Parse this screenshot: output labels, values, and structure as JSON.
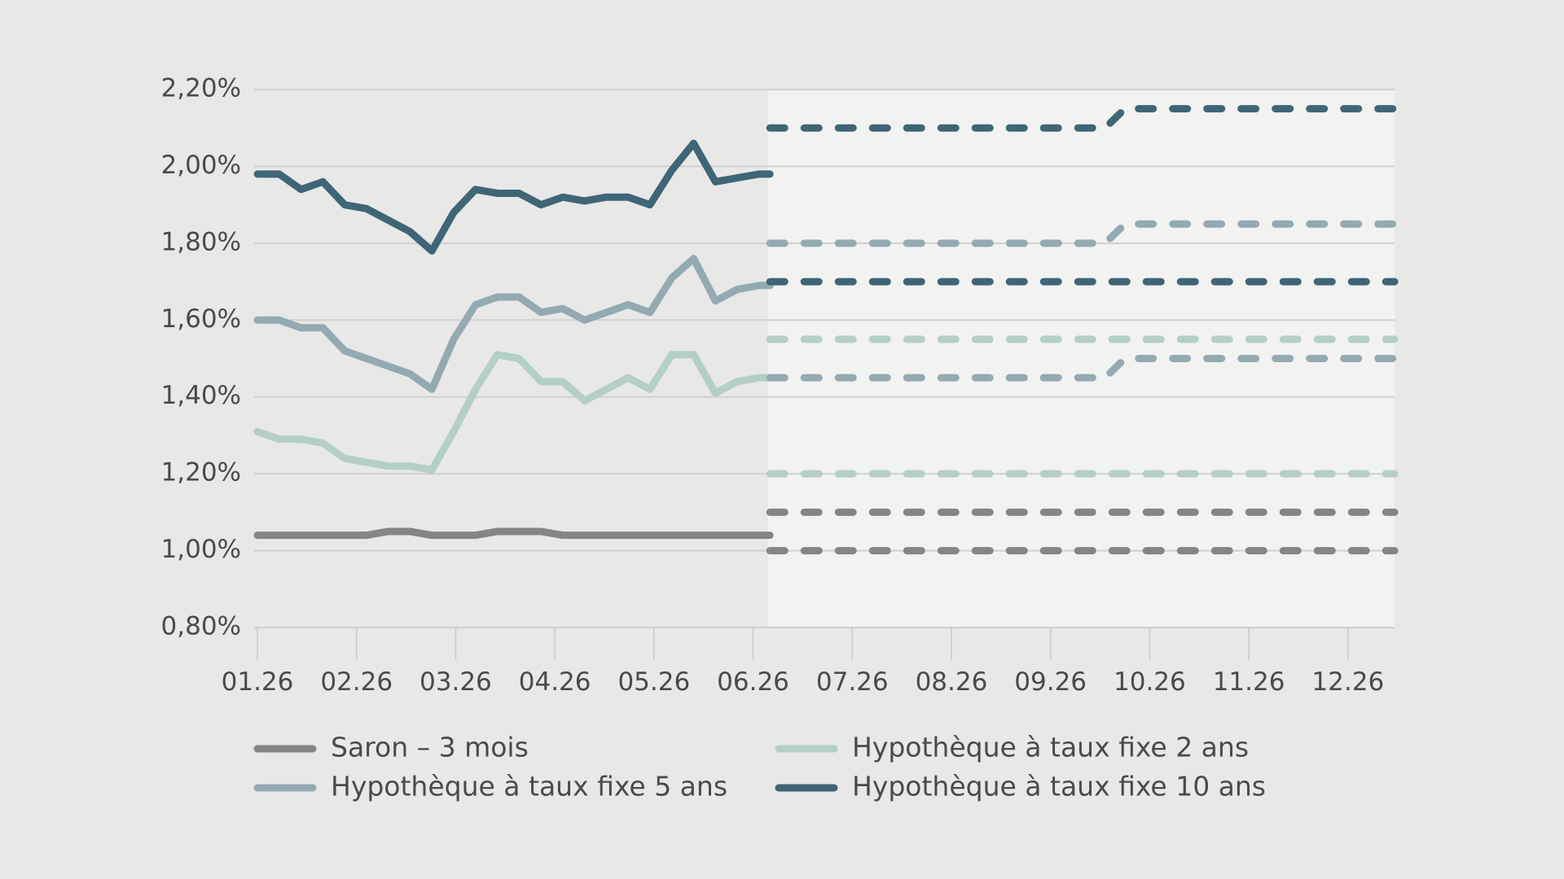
{
  "chart_data": {
    "type": "line",
    "colors": {
      "background": "#e8e8e7",
      "forecast_background": "#f2f2f1",
      "grid": "#d0d0cf",
      "axis_text": "#4a4a4a"
    },
    "ylim": [
      0.8,
      2.2
    ],
    "y_ticks": [
      2.2,
      2.0,
      1.8,
      1.6,
      1.4,
      1.2,
      1.0,
      0.8
    ],
    "y_tick_labels": [
      "2,20%",
      "2,00%",
      "1,80%",
      "1,60%",
      "1,40%",
      "1,20%",
      "1,00%",
      "0,80%"
    ],
    "x_ticks": [
      1,
      2,
      3,
      4,
      5,
      6,
      7,
      8,
      9,
      10,
      11,
      12
    ],
    "x_tick_labels": [
      "01.26",
      "02.26",
      "03.26",
      "04.26",
      "05.26",
      "06.26",
      "07.26",
      "08.26",
      "09.26",
      "10.26",
      "11.26",
      "12.26"
    ],
    "xlim": [
      1,
      12.47
    ],
    "forecast_start": 6.15,
    "series": [
      {
        "name": "Saron – 3 mois",
        "color": "#858585",
        "x": [
          1,
          1.22,
          1.44,
          1.66,
          1.88,
          2.1,
          2.32,
          2.54,
          2.76,
          2.98,
          3.2,
          3.42,
          3.64,
          3.86,
          4.08,
          4.3,
          4.52,
          4.74,
          4.96,
          5.18,
          5.4,
          5.62,
          5.84,
          6.06,
          6.17
        ],
        "y": [
          1.04,
          1.04,
          1.04,
          1.04,
          1.04,
          1.04,
          1.05,
          1.05,
          1.04,
          1.04,
          1.04,
          1.05,
          1.05,
          1.05,
          1.04,
          1.04,
          1.04,
          1.04,
          1.04,
          1.04,
          1.04,
          1.04,
          1.04,
          1.04,
          1.04
        ],
        "forecast": [
          {
            "x": [
              6.17,
              12.47
            ],
            "y": [
              1.0,
              1.0
            ]
          },
          {
            "x": [
              6.17,
              12.47
            ],
            "y": [
              1.1,
              1.1
            ]
          }
        ]
      },
      {
        "name": "Hypothèque à taux fixe 2 ans",
        "color": "#b3cfc6",
        "x": [
          1,
          1.22,
          1.44,
          1.66,
          1.88,
          2.1,
          2.32,
          2.54,
          2.76,
          2.98,
          3.2,
          3.42,
          3.64,
          3.86,
          4.08,
          4.3,
          4.52,
          4.74,
          4.96,
          5.18,
          5.4,
          5.62,
          5.84,
          6.06,
          6.17
        ],
        "y": [
          1.31,
          1.29,
          1.29,
          1.28,
          1.24,
          1.23,
          1.22,
          1.22,
          1.21,
          1.31,
          1.42,
          1.51,
          1.5,
          1.44,
          1.44,
          1.39,
          1.42,
          1.45,
          1.42,
          1.51,
          1.51,
          1.41,
          1.44,
          1.45,
          1.45
        ],
        "forecast": [
          {
            "x": [
              6.17,
              12.47
            ],
            "y": [
              1.55,
              1.55
            ]
          },
          {
            "x": [
              6.17,
              12.47
            ],
            "y": [
              1.2,
              1.2
            ]
          }
        ]
      },
      {
        "name": "Hypothèque à taux fixe 5 ans",
        "color": "#93aab3",
        "x": [
          1,
          1.22,
          1.44,
          1.66,
          1.88,
          2.1,
          2.32,
          2.54,
          2.76,
          2.98,
          3.2,
          3.42,
          3.64,
          3.86,
          4.08,
          4.3,
          4.52,
          4.74,
          4.96,
          5.18,
          5.4,
          5.62,
          5.84,
          6.06,
          6.17
        ],
        "y": [
          1.6,
          1.6,
          1.58,
          1.58,
          1.52,
          1.5,
          1.48,
          1.46,
          1.42,
          1.55,
          1.64,
          1.66,
          1.66,
          1.62,
          1.63,
          1.6,
          1.62,
          1.64,
          1.62,
          1.71,
          1.76,
          1.65,
          1.68,
          1.69,
          1.69
        ],
        "forecast": [
          {
            "x": [
              6.17,
              9.55,
              9.75,
              12.47
            ],
            "y": [
              1.8,
              1.8,
              1.85,
              1.85
            ]
          },
          {
            "x": [
              6.17,
              9.55,
              9.75,
              12.47
            ],
            "y": [
              1.45,
              1.45,
              1.5,
              1.5
            ]
          }
        ]
      },
      {
        "name": "Hypothèque à taux fixe 10 ans",
        "color": "#3e6677",
        "x": [
          1,
          1.22,
          1.44,
          1.66,
          1.88,
          2.1,
          2.32,
          2.54,
          2.76,
          2.98,
          3.2,
          3.42,
          3.64,
          3.86,
          4.08,
          4.3,
          4.52,
          4.74,
          4.96,
          5.18,
          5.4,
          5.62,
          5.84,
          6.06,
          6.17
        ],
        "y": [
          1.98,
          1.98,
          1.94,
          1.96,
          1.9,
          1.89,
          1.86,
          1.83,
          1.78,
          1.88,
          1.94,
          1.93,
          1.93,
          1.9,
          1.92,
          1.91,
          1.92,
          1.92,
          1.9,
          1.99,
          2.06,
          1.96,
          1.97,
          1.98,
          1.98
        ],
        "forecast": [
          {
            "x": [
              6.17,
              9.55,
              9.75,
              12.47
            ],
            "y": [
              2.1,
              2.1,
              2.15,
              2.15
            ]
          },
          {
            "x": [
              6.17,
              12.47
            ],
            "y": [
              1.7,
              1.7
            ]
          }
        ]
      }
    ]
  },
  "legend": {
    "items": [
      {
        "label": "Saron – 3 mois",
        "color": "#858585"
      },
      {
        "label": "Hypothèque à taux fixe 2 ans",
        "color": "#b3cfc6"
      },
      {
        "label": "Hypothèque à taux fixe 5 ans",
        "color": "#93aab3"
      },
      {
        "label": "Hypothèque à taux fixe 10 ans",
        "color": "#3e6677"
      }
    ]
  }
}
